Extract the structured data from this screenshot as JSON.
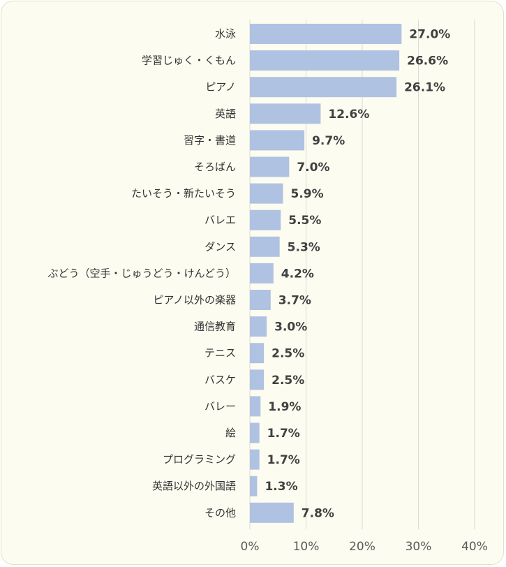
{
  "chart_data": {
    "type": "bar",
    "orientation": "horizontal",
    "title": "",
    "xlabel": "",
    "ylabel": "",
    "categories": [
      "水泳",
      "学習じゅく・くもん",
      "ピアノ",
      "英語",
      "習字・書道",
      "そろばん",
      "たいそう・新たいそう",
      "バレエ",
      "ダンス",
      "ぶどう（空手・じゅうどう・けんどう）",
      "ピアノ以外の楽器",
      "通信教育",
      "テニス",
      "バスケ",
      "バレー",
      "絵",
      "プログラミング",
      "英語以外の外国語",
      "その他"
    ],
    "values": [
      27.0,
      26.6,
      26.1,
      12.6,
      9.7,
      7.0,
      5.9,
      5.5,
      5.3,
      4.2,
      3.7,
      3.0,
      2.5,
      2.5,
      1.9,
      1.7,
      1.7,
      1.3,
      7.8
    ],
    "value_labels": [
      "27.0%",
      "26.6%",
      "26.1%",
      "12.6%",
      "9.7%",
      "7.0%",
      "5.9%",
      "5.5%",
      "5.3%",
      "4.2%",
      "3.7%",
      "3.0%",
      "2.5%",
      "2.5%",
      "1.9%",
      "1.7%",
      "1.7%",
      "1.3%",
      "7.8%"
    ],
    "xlim": [
      0,
      40
    ],
    "xticks": [
      0,
      10,
      20,
      30,
      40
    ],
    "xtick_labels": [
      "0%",
      "10%",
      "20%",
      "30%",
      "40%"
    ],
    "grid": true,
    "bar_color": "#b0c2e2",
    "gridline_color": "#d9d9d9",
    "background_color": "#fdfcf0"
  }
}
